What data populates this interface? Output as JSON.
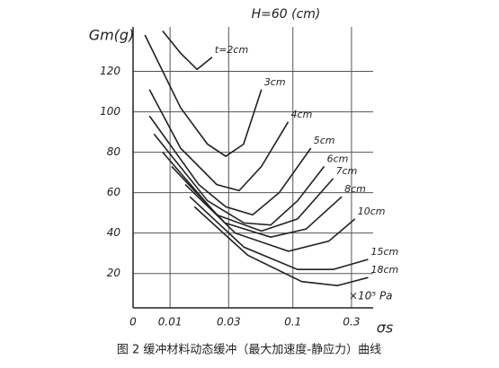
{
  "chart_data": {
    "type": "line",
    "title": "H=60 (cm)",
    "y_label": "Gm(g)",
    "x_label": "σs",
    "x_unit": "×10⁵ Pa",
    "caption": "图 2 缓冲材料动态缓冲（最大加速度-静应力）曲线",
    "xscale": "log",
    "xlim": [
      0.005,
      0.45
    ],
    "ylim": [
      3,
      142
    ],
    "xticks": [
      {
        "value": 0.005,
        "label": "0"
      },
      0.01,
      0.03,
      0.1,
      0.3
    ],
    "yticks": [
      20,
      40,
      60,
      80,
      100,
      120
    ],
    "grid": true,
    "color": "#222222",
    "series": [
      {
        "name": "t=2cm",
        "x": [
          0.0087,
          0.0122,
          0.0166,
          0.022
        ],
        "values": [
          140,
          129,
          121,
          127
        ]
      },
      {
        "name": "3cm",
        "x": [
          0.00625,
          0.0122,
          0.0202,
          0.0284,
          0.0397,
          0.0555
        ],
        "values": [
          138,
          102,
          84,
          78,
          84,
          111
        ]
      },
      {
        "name": "4cm",
        "x": [
          0.0068,
          0.0122,
          0.024,
          0.0365,
          0.0555,
          0.0916
        ],
        "values": [
          111,
          82,
          64,
          61,
          73,
          95
        ]
      },
      {
        "name": "5cm",
        "x": [
          0.0068,
          0.0171,
          0.0284,
          0.047,
          0.0775,
          0.14
        ],
        "values": [
          98,
          64,
          53,
          49,
          60,
          82
        ]
      },
      {
        "name": "6cm",
        "x": [
          0.0074,
          0.0202,
          0.04,
          0.066,
          0.109,
          0.18
        ],
        "values": [
          89,
          56,
          45,
          44,
          56,
          73
        ]
      },
      {
        "name": "7cm",
        "x": [
          0.0087,
          0.024,
          0.0555,
          0.109,
          0.213
        ],
        "values": [
          80,
          49,
          41,
          47,
          67
        ]
      },
      {
        "name": "8cm",
        "x": [
          0.0103,
          0.028,
          0.066,
          0.128,
          0.25
        ],
        "values": [
          73,
          45,
          38,
          42,
          58
        ]
      },
      {
        "name": "10cm",
        "x": [
          0.0133,
          0.034,
          0.092,
          0.196,
          0.32
        ],
        "values": [
          64,
          40,
          31,
          36,
          47
        ]
      },
      {
        "name": "15cm",
        "x": [
          0.0145,
          0.04,
          0.109,
          0.213,
          0.41
        ],
        "values": [
          58,
          33,
          22,
          22,
          27
        ]
      },
      {
        "name": "18cm",
        "x": [
          0.0158,
          0.043,
          0.118,
          0.23,
          0.41
        ],
        "values": [
          53,
          29,
          16,
          14,
          18
        ]
      }
    ]
  }
}
